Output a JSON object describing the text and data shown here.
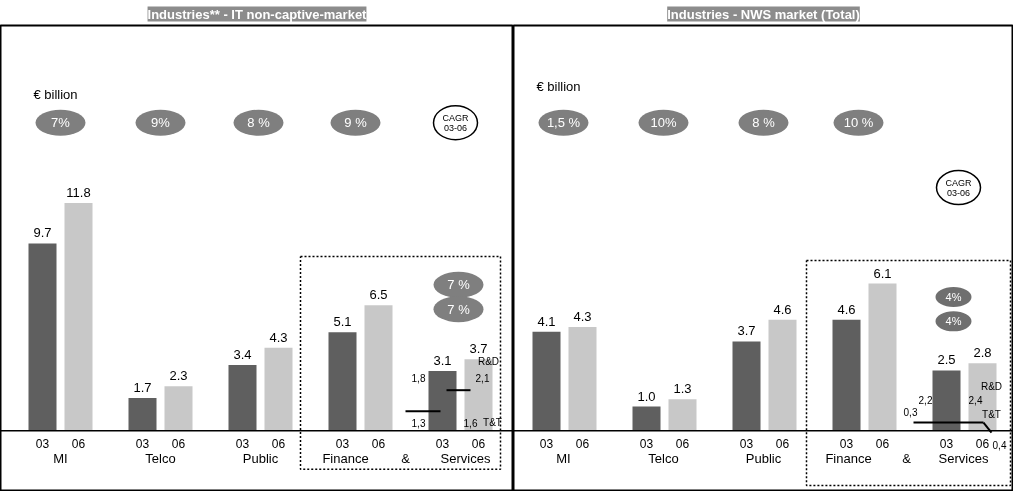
{
  "chart_data": [
    {
      "type": "bar",
      "title": "Industries** - IT non-captive-market",
      "categories": [
        "03",
        "06",
        "03",
        "06",
        "03",
        "06",
        "03",
        "06",
        "03",
        "06"
      ],
      "values": [
        9.7,
        11.8,
        1.7,
        2.3,
        3.4,
        4.3,
        5.1,
        6.5,
        3.1,
        3.7
      ],
      "colors": [
        "#5f5f5f",
        "#c8c8c8",
        "#5f5f5f",
        "#c8c8c8",
        "#5f5f5f",
        "#c8c8c8",
        "#5f5f5f",
        "#c8c8c8",
        "#5f5f5f",
        "#c8c8c8"
      ],
      "value_labels": [
        "9.7",
        "11.8",
        "1.7",
        "2.3",
        "3.4",
        "4.3",
        "5.1",
        "6.5",
        "3.1",
        "3.7"
      ],
      "annotations": [
        "€ billion",
        "7%",
        "9%",
        "8 %",
        "9 %",
        "CAGR\n03-06",
        "7 %",
        "7 %",
        "MI",
        "Telco",
        "Public",
        "Finance",
        "&",
        "Services",
        "1,8",
        "2,1",
        "R&D",
        "1,3",
        "1,6",
        "T&T"
      ]
    },
    {
      "type": "bar",
      "title": "Industries - NWS market (Total)",
      "categories": [
        "03",
        "06",
        "03",
        "06",
        "03",
        "06",
        "03",
        "06",
        "03",
        "06"
      ],
      "values": [
        4.1,
        4.3,
        1.0,
        1.3,
        3.7,
        4.6,
        4.6,
        6.1,
        2.5,
        2.8
      ],
      "colors": [
        "#5f5f5f",
        "#c8c8c8",
        "#5f5f5f",
        "#c8c8c8",
        "#5f5f5f",
        "#c8c8c8",
        "#5f5f5f",
        "#c8c8c8",
        "#5f5f5f",
        "#c8c8c8"
      ],
      "value_labels": [
        "4.1",
        "4.3",
        "1.0",
        "1.3",
        "3.7",
        "4.6",
        "4.6",
        "6.1",
        "2.5",
        "2.8"
      ],
      "annotations": [
        "€ billion",
        "1,5 %",
        "10%",
        "8 %",
        "10 %",
        "CAGR\n03-06",
        "4%",
        "4%",
        "MI",
        "Telco",
        "Public",
        "Finance",
        "&",
        "Services",
        "2,2",
        "2,4",
        "R&D",
        "0,3",
        "T&T",
        "0,4"
      ]
    }
  ]
}
